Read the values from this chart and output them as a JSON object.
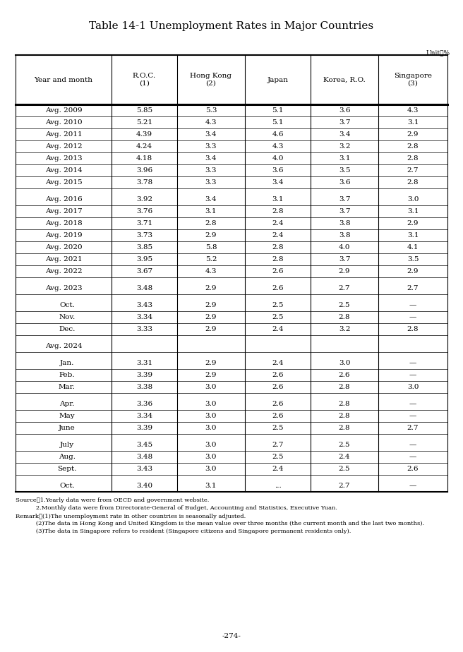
{
  "title": "Table 14-1 Unemployment Rates in Major Countries",
  "unit": "Unit：%",
  "page": "-274-",
  "col_headers": [
    "Year and month",
    "R.O.C.\n(1)",
    "Hong Kong\n(2)",
    "Japan",
    "Korea, R.O.",
    "Singapore\n(3)"
  ],
  "rows": [
    {
      "label": "Avg. 2009",
      "vals": [
        "5.85",
        "5.3",
        "5.1",
        "3.6",
        "4.3"
      ],
      "type": "data"
    },
    {
      "label": "Avg. 2010",
      "vals": [
        "5.21",
        "4.3",
        "5.1",
        "3.7",
        "3.1"
      ],
      "type": "data"
    },
    {
      "label": "Avg. 2011",
      "vals": [
        "4.39",
        "3.4",
        "4.6",
        "3.4",
        "2.9"
      ],
      "type": "data"
    },
    {
      "label": "Avg. 2012",
      "vals": [
        "4.24",
        "3.3",
        "4.3",
        "3.2",
        "2.8"
      ],
      "type": "data"
    },
    {
      "label": "Avg. 2013",
      "vals": [
        "4.18",
        "3.4",
        "4.0",
        "3.1",
        "2.8"
      ],
      "type": "data"
    },
    {
      "label": "Avg. 2014",
      "vals": [
        "3.96",
        "3.3",
        "3.6",
        "3.5",
        "2.7"
      ],
      "type": "data"
    },
    {
      "label": "Avg. 2015",
      "vals": [
        "3.78",
        "3.3",
        "3.4",
        "3.6",
        "2.8"
      ],
      "type": "data"
    },
    {
      "label": "",
      "vals": [
        "",
        "",
        "",
        "",
        ""
      ],
      "type": "gap"
    },
    {
      "label": "Avg. 2016",
      "vals": [
        "3.92",
        "3.4",
        "3.1",
        "3.7",
        "3.0"
      ],
      "type": "data"
    },
    {
      "label": "Avg. 2017",
      "vals": [
        "3.76",
        "3.1",
        "2.8",
        "3.7",
        "3.1"
      ],
      "type": "data"
    },
    {
      "label": "Avg. 2018",
      "vals": [
        "3.71",
        "2.8",
        "2.4",
        "3.8",
        "2.9"
      ],
      "type": "data"
    },
    {
      "label": "Avg. 2019",
      "vals": [
        "3.73",
        "2.9",
        "2.4",
        "3.8",
        "3.1"
      ],
      "type": "data"
    },
    {
      "label": "Avg. 2020",
      "vals": [
        "3.85",
        "5.8",
        "2.8",
        "4.0",
        "4.1"
      ],
      "type": "data"
    },
    {
      "label": "Avg. 2021",
      "vals": [
        "3.95",
        "5.2",
        "2.8",
        "3.7",
        "3.5"
      ],
      "type": "data"
    },
    {
      "label": "Avg. 2022",
      "vals": [
        "3.67",
        "4.3",
        "2.6",
        "2.9",
        "2.9"
      ],
      "type": "data"
    },
    {
      "label": "",
      "vals": [
        "",
        "",
        "",
        "",
        ""
      ],
      "type": "gap"
    },
    {
      "label": "Avg. 2023",
      "vals": [
        "3.48",
        "2.9",
        "2.6",
        "2.7",
        "2.7"
      ],
      "type": "data"
    },
    {
      "label": "",
      "vals": [
        "",
        "",
        "",
        "",
        ""
      ],
      "type": "gap"
    },
    {
      "label": "Oct.",
      "vals": [
        "3.43",
        "2.9",
        "2.5",
        "2.5",
        "—"
      ],
      "type": "month"
    },
    {
      "label": "Nov.",
      "vals": [
        "3.34",
        "2.9",
        "2.5",
        "2.8",
        "—"
      ],
      "type": "month"
    },
    {
      "label": "Dec.",
      "vals": [
        "3.33",
        "2.9",
        "2.4",
        "3.2",
        "2.8"
      ],
      "type": "month"
    },
    {
      "label": "",
      "vals": [
        "",
        "",
        "",
        "",
        ""
      ],
      "type": "gap"
    },
    {
      "label": "Avg. 2024",
      "vals": [
        "",
        "",
        "",
        "",
        ""
      ],
      "type": "header_row"
    },
    {
      "label": "",
      "vals": [
        "",
        "",
        "",
        "",
        ""
      ],
      "type": "gap"
    },
    {
      "label": "Jan.",
      "vals": [
        "3.31",
        "2.9",
        "2.4",
        "3.0",
        "—"
      ],
      "type": "month"
    },
    {
      "label": "Feb.",
      "vals": [
        "3.39",
        "2.9",
        "2.6",
        "2.6",
        "—"
      ],
      "type": "month"
    },
    {
      "label": "Mar.",
      "vals": [
        "3.38",
        "3.0",
        "2.6",
        "2.8",
        "3.0"
      ],
      "type": "month"
    },
    {
      "label": "",
      "vals": [
        "",
        "",
        "",
        "",
        ""
      ],
      "type": "gap"
    },
    {
      "label": "Apr.",
      "vals": [
        "3.36",
        "3.0",
        "2.6",
        "2.8",
        "—"
      ],
      "type": "month"
    },
    {
      "label": "May",
      "vals": [
        "3.34",
        "3.0",
        "2.6",
        "2.8",
        "—"
      ],
      "type": "month"
    },
    {
      "label": "June",
      "vals": [
        "3.39",
        "3.0",
        "2.5",
        "2.8",
        "2.7"
      ],
      "type": "month"
    },
    {
      "label": "",
      "vals": [
        "",
        "",
        "",
        "",
        ""
      ],
      "type": "gap"
    },
    {
      "label": "July",
      "vals": [
        "3.45",
        "3.0",
        "2.7",
        "2.5",
        "—"
      ],
      "type": "month"
    },
    {
      "label": "Aug.",
      "vals": [
        "3.48",
        "3.0",
        "2.5",
        "2.4",
        "—"
      ],
      "type": "month"
    },
    {
      "label": "Sept.",
      "vals": [
        "3.43",
        "3.0",
        "2.4",
        "2.5",
        "2.6"
      ],
      "type": "month"
    },
    {
      "label": "",
      "vals": [
        "",
        "",
        "",
        "",
        ""
      ],
      "type": "gap"
    },
    {
      "label": "Oct.",
      "vals": [
        "3.40",
        "3.1",
        "...",
        "2.7",
        "—"
      ],
      "type": "month"
    }
  ],
  "source_line1": "Source：1.Yearly data were from OECD and government website.",
  "source_line2": "           2.Monthly data were from Directorate-General of Budget, Accounting and Statistics, Executive Yuan.",
  "remark_line1": "Remark：(1)The unemployment rate in other countries is seasonally adjusted.",
  "remark_line2": "           (2)The data in Hong Kong and United Kingdom is the mean value over three months (the current month and the last two months).",
  "remark_line3": "           (3)The data in Singapore refers to resident (Singapore citizens and Singapore permanent residents only).",
  "title_fontsize": 11,
  "header_fontsize": 7.5,
  "cell_fontsize": 7.5,
  "note_fontsize": 6.0
}
